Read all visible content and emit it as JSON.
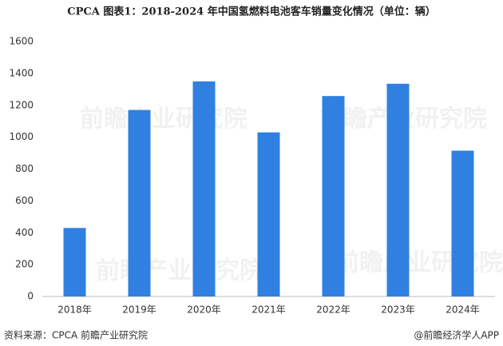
{
  "chart_data": {
    "type": "bar",
    "title": "CPCA  图表1：2018-2024 年中国氢燃料电池客车销量变化情况（单位：辆）",
    "categories": [
      "2018年",
      "2019年",
      "2020年",
      "2021年",
      "2022年",
      "2023年",
      "2024年"
    ],
    "values": [
      430,
      1170,
      1350,
      1030,
      1258,
      1335,
      915
    ],
    "color": "#2f80e0",
    "ylim": [
      0,
      1600
    ],
    "yticks": [
      0,
      200,
      400,
      600,
      800,
      1000,
      1200,
      1400,
      1600
    ],
    "grid": false,
    "source": "资料来源：CPCA 前瞻产业研究院",
    "credit": "@前瞻经济学人APP",
    "watermark": "前瞻产业研究院"
  }
}
